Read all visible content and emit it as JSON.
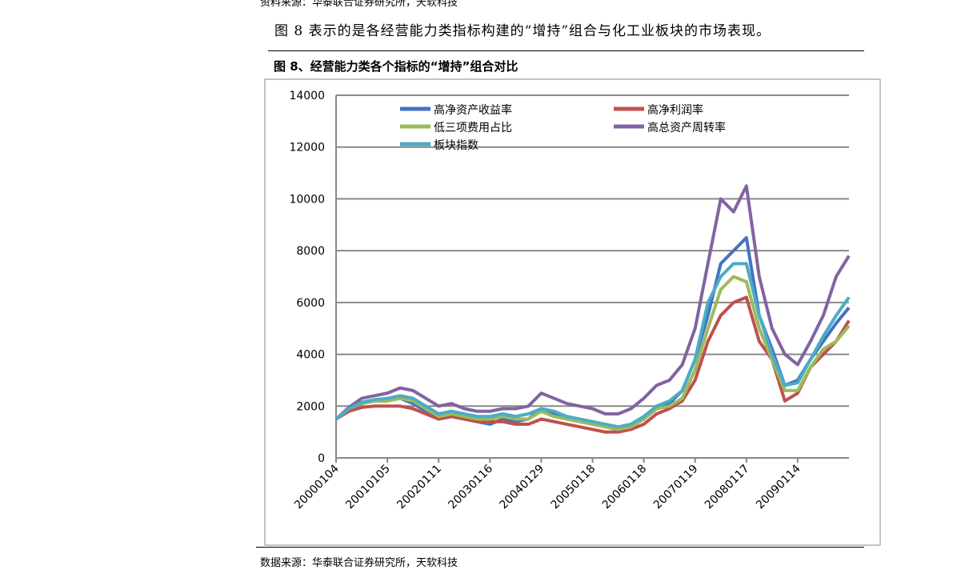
{
  "source_top": "资料来源：华泰联合证券研究所，天软科技",
  "paragraph": "图 8 表示的是各经营能力类指标构建的“增持”组合与化工业板块的市场表现。",
  "chart_title": "图 8、经营能力类各个指标的“增持”组合对比",
  "source_bottom": "数据来源：华泰联合证券研究所，天软科技",
  "chart_data": {
    "type": "line",
    "categories": [
      "20000104",
      null,
      null,
      null,
      "20010105",
      null,
      null,
      null,
      "20020111",
      null,
      null,
      null,
      "20030116",
      null,
      null,
      null,
      "20040129",
      null,
      null,
      null,
      "20050118",
      null,
      null,
      null,
      "20060118",
      null,
      null,
      null,
      "20070119",
      null,
      null,
      null,
      "20080117",
      null,
      null,
      null,
      "20090114",
      null,
      null,
      null,
      null
    ],
    "ylim": [
      0,
      14000
    ],
    "yticks": [
      0,
      2000,
      4000,
      6000,
      8000,
      10000,
      12000,
      14000
    ],
    "grid": true,
    "series": [
      {
        "name": "高净资产收益率",
        "color": "#4472c4",
        "values": [
          1500,
          1900,
          2100,
          2200,
          2200,
          2300,
          2100,
          1800,
          1500,
          1600,
          1500,
          1400,
          1300,
          1500,
          1400,
          1500,
          1900,
          1700,
          1500,
          1400,
          1300,
          1200,
          1100,
          1200,
          1500,
          1900,
          2100,
          2600,
          3800,
          5500,
          7500,
          8000,
          8500,
          5500,
          4200,
          2800,
          3000,
          3800,
          4500,
          5200,
          5800
        ]
      },
      {
        "name": "高净利润率",
        "color": "#c0504d",
        "values": [
          1500,
          1800,
          1950,
          2000,
          2000,
          2000,
          1900,
          1700,
          1500,
          1600,
          1500,
          1400,
          1400,
          1400,
          1300,
          1300,
          1500,
          1400,
          1300,
          1200,
          1100,
          1000,
          1000,
          1100,
          1300,
          1700,
          1900,
          2200,
          3000,
          4500,
          5500,
          6000,
          6200,
          4500,
          3800,
          2200,
          2500,
          3500,
          4000,
          4500,
          5300
        ]
      },
      {
        "name": "低三项费用占比",
        "color": "#9bbb59",
        "values": [
          1500,
          1900,
          2100,
          2200,
          2200,
          2300,
          2200,
          1900,
          1600,
          1700,
          1600,
          1500,
          1500,
          1600,
          1500,
          1500,
          1800,
          1600,
          1500,
          1400,
          1300,
          1200,
          1100,
          1200,
          1500,
          1900,
          2000,
          2300,
          3400,
          5000,
          6500,
          7000,
          6800,
          5000,
          3800,
          2600,
          2600,
          3500,
          4200,
          4500,
          5100
        ]
      },
      {
        "name": "高总资产周转率",
        "color": "#8064a2",
        "values": [
          1500,
          1950,
          2300,
          2400,
          2500,
          2700,
          2600,
          2300,
          2000,
          2100,
          1900,
          1800,
          1800,
          1900,
          1900,
          2000,
          2500,
          2300,
          2100,
          2000,
          1900,
          1700,
          1700,
          1900,
          2300,
          2800,
          3000,
          3600,
          5000,
          7500,
          10000,
          9500,
          10500,
          7000,
          5000,
          4000,
          3600,
          4500,
          5500,
          7000,
          7800
        ]
      },
      {
        "name": "板块指数",
        "color": "#4bacc6",
        "values": [
          1500,
          1900,
          2150,
          2250,
          2300,
          2400,
          2300,
          2000,
          1700,
          1800,
          1700,
          1600,
          1600,
          1700,
          1600,
          1700,
          1900,
          1800,
          1600,
          1500,
          1400,
          1300,
          1200,
          1300,
          1600,
          2000,
          2200,
          2600,
          3800,
          6000,
          7000,
          7500,
          7500,
          5500,
          4000,
          2800,
          2900,
          3800,
          4700,
          5500,
          6200
        ]
      }
    ]
  }
}
